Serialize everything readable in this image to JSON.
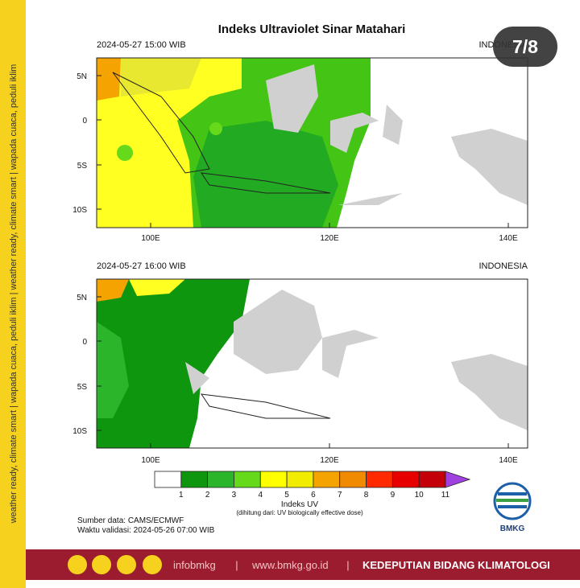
{
  "side_text": "weather ready, climate smart | wapada cuaca, peduli iklim | weather ready, climate smart | wapada cuaca, peduli iklim",
  "title": "Indeks Ultraviolet Sinar Matahari",
  "badge": "7/8",
  "panels": [
    {
      "time": "2024-05-27  15:00 WIB",
      "region": "INDONESIA",
      "lat_labels": [
        "5N",
        "0",
        "5S",
        "10S"
      ],
      "lon_labels": [
        "100E",
        "120E",
        "140E"
      ]
    },
    {
      "time": "2024-05-27  16:00 WIB",
      "region": "INDONESIA",
      "lat_labels": [
        "5N",
        "0",
        "5S",
        "10S"
      ],
      "lon_labels": [
        "100E",
        "120E",
        "140E"
      ]
    }
  ],
  "colorbar": {
    "labels": [
      "1",
      "2",
      "3",
      "4",
      "5",
      "6",
      "7",
      "8",
      "9",
      "10",
      "11"
    ],
    "colors": [
      "#ffffff",
      "#0f960f",
      "#2bb52b",
      "#66d91a",
      "#ffff00",
      "#f2ec00",
      "#f5a300",
      "#f08a00",
      "#ff2a00",
      "#e60000",
      "#c4000a"
    ],
    "extend_color": "#a040e0",
    "title": "Indeks UV",
    "note": "(dihitung dari: UV biologically effective dose)"
  },
  "source": "Sumber data: CAMS/ECMWF",
  "validity": "Waktu validasi: 2024-05-26 07:00 WIB",
  "logo": "BMKG",
  "footer": {
    "handle": "infobmkg",
    "sep1": "|",
    "website": "www.bmkg.go.id",
    "sep2": "|",
    "agency": "KEDEPUTIAN BIDANG KLIMATOLOGI"
  }
}
